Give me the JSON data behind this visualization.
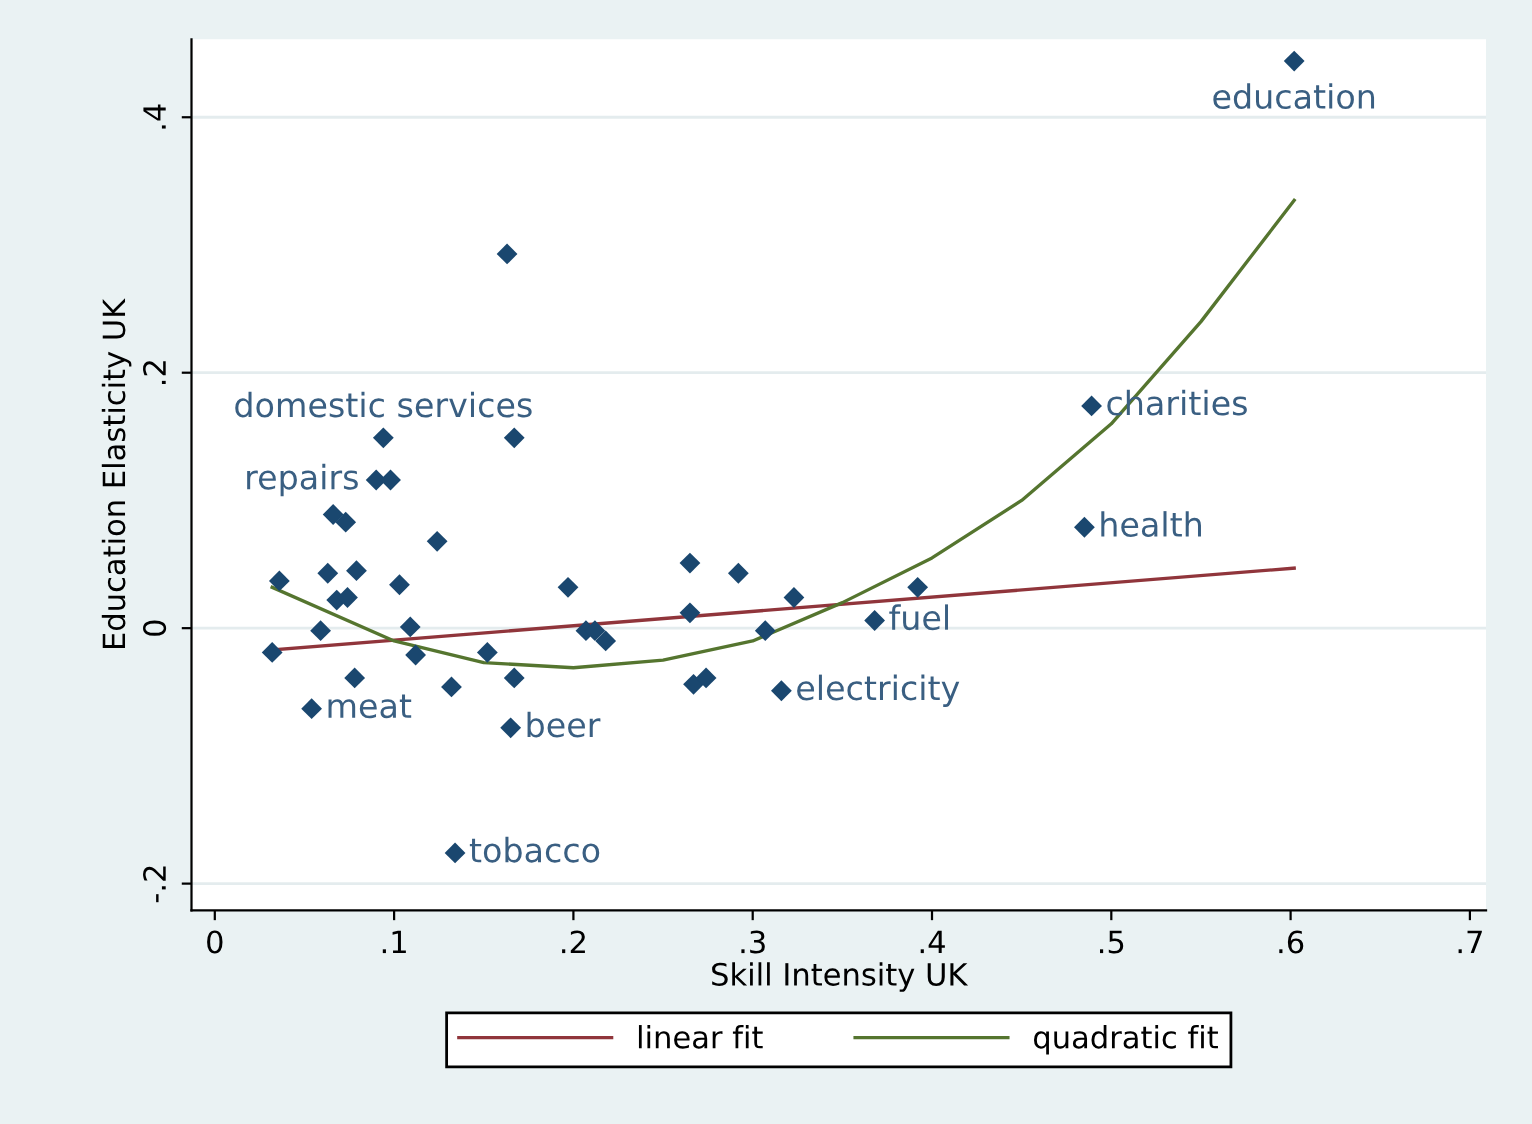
{
  "chart_data": {
    "type": "scatter",
    "xlabel": "Skill Intensity UK",
    "ylabel": "Education Elasticity UK",
    "xlim": [
      -0.013,
      0.709
    ],
    "ylim": [
      -0.221,
      0.461
    ],
    "xticks": [
      {
        "value": 0,
        "label": "0"
      },
      {
        "value": 0.1,
        "label": ".1"
      },
      {
        "value": 0.2,
        "label": ".2"
      },
      {
        "value": 0.3,
        "label": ".3"
      },
      {
        "value": 0.4,
        "label": ".4"
      },
      {
        "value": 0.5,
        "label": ".5"
      },
      {
        "value": 0.6,
        "label": ".6"
      },
      {
        "value": 0.7,
        "label": ".7"
      }
    ],
    "yticks": [
      {
        "value": -0.2,
        "label": "-.2"
      },
      {
        "value": 0,
        "label": "0"
      },
      {
        "value": 0.2,
        "label": ".2"
      },
      {
        "value": 0.4,
        "label": ".4"
      }
    ],
    "grid": "y",
    "legend": "bottom",
    "series": [
      {
        "marker": "diamond",
        "color": "#1a476f",
        "x": [
          0.602,
          0.163,
          0.489,
          0.485,
          0.094,
          0.167,
          0.09,
          0.098,
          0.066,
          0.073,
          0.124,
          0.036,
          0.063,
          0.079,
          0.103,
          0.068,
          0.074,
          0.059,
          0.032,
          0.109,
          0.112,
          0.078,
          0.054,
          0.132,
          0.152,
          0.167,
          0.165,
          0.134,
          0.197,
          0.207,
          0.212,
          0.218,
          0.265,
          0.265,
          0.292,
          0.267,
          0.274,
          0.307,
          0.323,
          0.316,
          0.368,
          0.392
        ],
        "values": [
          0.444,
          0.293,
          0.174,
          0.079,
          0.149,
          0.149,
          0.116,
          0.116,
          0.089,
          0.083,
          0.068,
          0.037,
          0.043,
          0.045,
          0.034,
          0.022,
          0.024,
          -0.002,
          -0.019,
          0.001,
          -0.021,
          -0.039,
          -0.063,
          -0.046,
          -0.019,
          -0.039,
          -0.078,
          -0.176,
          0.032,
          -0.002,
          -0.002,
          -0.01,
          0.051,
          0.012,
          0.043,
          -0.044,
          -0.039,
          -0.002,
          0.024,
          -0.049,
          0.006,
          0.032
        ]
      },
      {
        "type": "line",
        "name": "linear fit",
        "color": "#90353b",
        "x": [
          0.032,
          0.602
        ],
        "values": [
          -0.017,
          0.047
        ]
      },
      {
        "type": "line",
        "name": "quadratic fit",
        "color": "#55752f",
        "x": [
          0.032,
          0.1,
          0.15,
          0.2,
          0.25,
          0.3,
          0.35,
          0.4,
          0.45,
          0.5,
          0.55,
          0.602
        ],
        "values": [
          0.032,
          -0.01,
          -0.027,
          -0.031,
          -0.025,
          -0.01,
          0.02,
          0.055,
          0.1,
          0.16,
          0.24,
          0.335
        ]
      }
    ],
    "annotations": [
      {
        "text": "education",
        "x": 0.602,
        "y": 0.444
      },
      {
        "text": "charities",
        "x": 0.489,
        "y": 0.174
      },
      {
        "text": "health",
        "x": 0.485,
        "y": 0.079
      },
      {
        "text": "domestic services",
        "x": 0.094,
        "y": 0.149
      },
      {
        "text": "repairs",
        "x": 0.09,
        "y": 0.116
      },
      {
        "text": "meat",
        "x": 0.054,
        "y": -0.063
      },
      {
        "text": "beer",
        "x": 0.165,
        "y": -0.078
      },
      {
        "text": "tobacco",
        "x": 0.134,
        "y": -0.176
      },
      {
        "text": "electricity",
        "x": 0.316,
        "y": -0.049
      },
      {
        "text": "fuel",
        "x": 0.368,
        "y": 0.006
      }
    ]
  }
}
